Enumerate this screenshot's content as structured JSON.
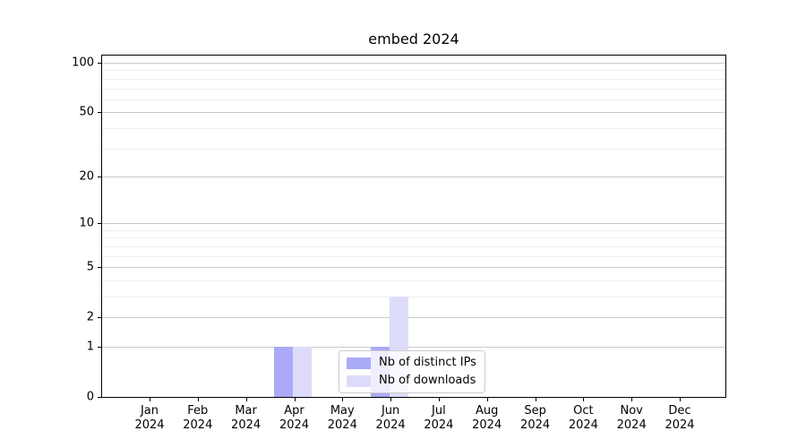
{
  "chart_data": {
    "type": "bar",
    "title": "embed 2024",
    "categories": [
      "Jan 2024",
      "Feb 2024",
      "Mar 2024",
      "Apr 2024",
      "May 2024",
      "Jun 2024",
      "Jul 2024",
      "Aug 2024",
      "Sep 2024",
      "Oct 2024",
      "Nov 2024",
      "Dec 2024"
    ],
    "series": [
      {
        "name": "Nb of distinct IPs",
        "color": "#aaaaf7",
        "values": [
          0,
          0,
          0,
          1,
          0,
          1,
          0,
          0,
          0,
          0,
          0,
          0
        ]
      },
      {
        "name": "Nb of downloads",
        "color": "#dcdcfa",
        "values": [
          0,
          0,
          0,
          1,
          0,
          3,
          0,
          0,
          0,
          0,
          0,
          0
        ]
      }
    ],
    "xlabel": "",
    "ylabel": "",
    "yaxis": {
      "scale": "log1p",
      "ticks": [
        0,
        1,
        2,
        5,
        10,
        20,
        50,
        100
      ],
      "minor_ticks": [
        3,
        4,
        6,
        7,
        8,
        9,
        30,
        40,
        60,
        70,
        80,
        90
      ],
      "ylim": [
        0,
        110
      ]
    },
    "grid": true,
    "legend": {
      "position": "lower-center-inside"
    }
  }
}
